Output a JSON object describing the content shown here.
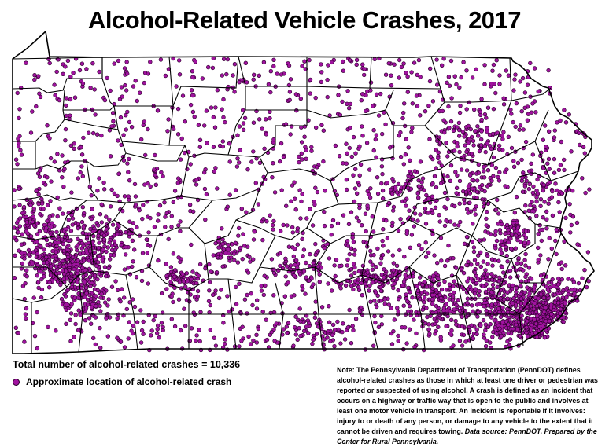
{
  "title": "Alcohol-Related Vehicle Crashes, 2017",
  "summary": {
    "total_label": "Total number of alcohol-related crashes = 10,336",
    "total_count": 10336
  },
  "legend": {
    "label": "Approximate location of alcohol-related crash",
    "marker_color": "#a0139f",
    "marker_outline": "#2a002a"
  },
  "note": {
    "body": "Note: The Pennsylvania Department of Transportation (PennDOT) defines alcohol-related crashes as those in which at least one driver or pedestrian was reported or suspected of using alcohol. A crash is defined as an incident that occurs on a highway or traffic way  that is open to the public and involves at least one motor vehicle in transport. An incident is reportable if it involves: injury to or death of any person, or damage to any vehicle to the extent that it cannot be driven and requires towing.",
    "source": "Data source: PennDOT. Prepared by the Center for Rural Pennsylvania."
  },
  "map": {
    "region": "Pennsylvania",
    "boundary_color": "#000000",
    "fill_color": "#ffffff"
  }
}
